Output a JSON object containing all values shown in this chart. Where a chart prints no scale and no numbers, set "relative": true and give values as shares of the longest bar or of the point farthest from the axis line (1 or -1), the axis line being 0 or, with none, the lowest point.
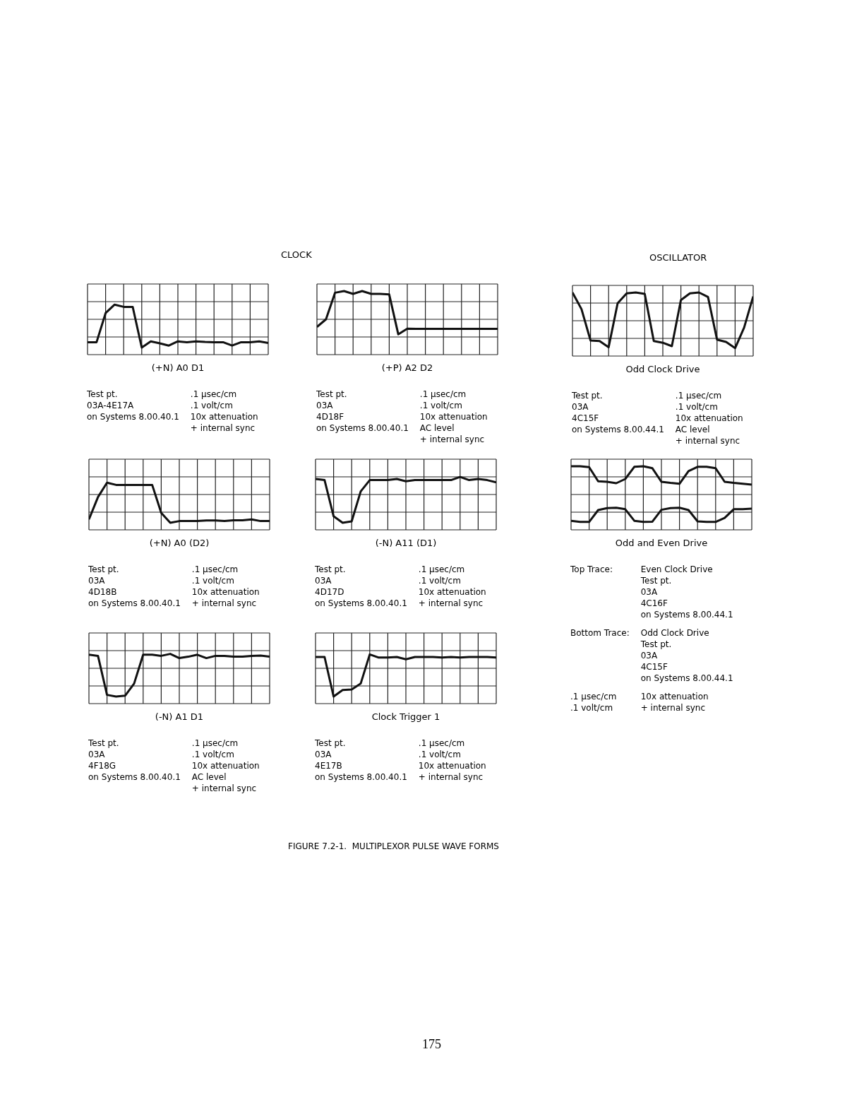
{
  "chart_data": [
    {
      "type": "line",
      "title": "(+N) A0 D1",
      "relative": true,
      "grid": true,
      "categories": [
        null,
        null,
        null,
        null,
        null,
        null,
        null,
        null,
        null,
        null,
        null,
        null,
        null,
        null,
        null,
        null,
        null,
        null,
        null,
        null,
        null
      ],
      "series": [
        {
          "color": "#111111",
          "values": [
            -0.81,
            -0.81,
            0.22,
            0.52,
            0.44,
            0.44,
            -1,
            -0.78,
            -0.85,
            -0.93,
            -0.78,
            -0.81,
            -0.78,
            -0.8,
            -0.81,
            -0.81,
            -0.93,
            -0.81,
            -0.81,
            -0.78,
            -0.84
          ]
        }
      ],
      "annotations": [
        "Test pt.\n03A-4E17A\non Systems 8.00.40.1",
        ".1 µsec/cm\n.1 volt/cm\n10x attenuation\n+ internal sync"
      ]
    },
    {
      "type": "line",
      "title": "(+P) A2 D2",
      "relative": true,
      "grid": true,
      "categories": [
        null,
        null,
        null,
        null,
        null,
        null,
        null,
        null,
        null,
        null,
        null,
        null,
        null,
        null,
        null,
        null,
        null,
        null,
        null,
        null,
        null
      ],
      "series": [
        {
          "color": "#111111",
          "values": [
            -0.27,
            0,
            0.94,
            1,
            0.9,
            1,
            0.9,
            0.9,
            0.88,
            -0.53,
            -0.33,
            -0.34,
            -0.34,
            -0.34,
            -0.34,
            -0.34,
            -0.34,
            -0.34,
            -0.34,
            -0.34,
            -0.34
          ]
        }
      ],
      "annotations": [
        "Test pt.\n03A\n4D18F\non Systems 8.00.40.1",
        ".1 µsec/cm\n.1 volt/cm\n10x attenuation\nAC level\n+ internal sync"
      ]
    },
    {
      "type": "line",
      "title": "Odd Clock Drive",
      "relative": true,
      "grid": true,
      "categories": [
        null,
        null,
        null,
        null,
        null,
        null,
        null,
        null,
        null,
        null,
        null,
        null,
        null,
        null,
        null,
        null,
        null,
        null,
        null,
        null,
        null
      ],
      "series": [
        {
          "color": "#111111",
          "values": [
            1,
            0.41,
            -0.7,
            -0.72,
            -0.94,
            0.62,
            0.97,
            1,
            0.95,
            -0.72,
            -0.78,
            -0.9,
            0.73,
            0.97,
            1,
            0.84,
            -0.67,
            -0.75,
            -0.97,
            -0.24,
            0.86
          ]
        }
      ],
      "annotations": [
        "Test pt.\n03A\n4C15F\non Systems 8.00.44.1",
        ".1 µsec/cm\n.1 volt/cm\n10x attenuation\nAC level\n+ internal sync"
      ]
    },
    {
      "type": "line",
      "title": "(+N) A0 (D2)",
      "relative": true,
      "grid": true,
      "categories": [
        null,
        null,
        null,
        null,
        null,
        null,
        null,
        null,
        null,
        null,
        null,
        null,
        null,
        null,
        null,
        null,
        null,
        null,
        null,
        null,
        null
      ],
      "series": [
        {
          "color": "#111111",
          "values": [
            -0.88,
            -0.09,
            0.42,
            0.34,
            0.34,
            0.34,
            0.34,
            0.34,
            -0.65,
            -1,
            -0.94,
            -0.94,
            -0.94,
            -0.92,
            -0.92,
            -0.94,
            -0.91,
            -0.91,
            -0.88,
            -0.94,
            -0.94
          ]
        }
      ],
      "annotations": [
        "Test pt.\n03A\n4D18B\non Systems 8.00.40.1",
        ".1 µsec/cm\n.1 volt/cm\n10x attenuation\n+ internal sync"
      ]
    },
    {
      "type": "line",
      "title": "(-N) A11 (D1)",
      "relative": true,
      "grid": true,
      "categories": [
        null,
        null,
        null,
        null,
        null,
        null,
        null,
        null,
        null,
        null,
        null,
        null,
        null,
        null,
        null,
        null,
        null,
        null,
        null,
        null,
        null
      ],
      "series": [
        {
          "color": "#111111",
          "values": [
            0.55,
            0.51,
            -0.77,
            -1,
            -0.95,
            0.11,
            0.51,
            0.51,
            0.51,
            0.55,
            0.47,
            0.51,
            0.51,
            0.51,
            0.51,
            0.51,
            0.62,
            0.51,
            0.55,
            0.51,
            0.43
          ]
        }
      ],
      "annotations": [
        "Test pt.\n03A\n4D17D\non Systems 8.00.40.1",
        ".1 µsec/cm\n.1 volt/cm\n10x attenuation\n+ internal sync"
      ]
    },
    {
      "type": "line",
      "title": "Odd and Even Drive",
      "relative": true,
      "grid": true,
      "categories": [
        null,
        null,
        null,
        null,
        null,
        null,
        null,
        null,
        null,
        null,
        null,
        null,
        null,
        null,
        null,
        null,
        null,
        null,
        null,
        null,
        null
      ],
      "series": [
        {
          "color": "#111111",
          "values": [
            1,
            1,
            0.97,
            0.47,
            0.45,
            0.4,
            0.55,
            0.98,
            1,
            0.93,
            0.45,
            0.41,
            0.38,
            0.83,
            0.98,
            0.98,
            0.93,
            0.45,
            0.41,
            0.38,
            0.35
          ]
        },
        {
          "color": "#111111",
          "values": [
            -0.93,
            -0.97,
            -0.97,
            -0.55,
            -0.48,
            -0.47,
            -0.52,
            -0.93,
            -0.97,
            -0.96,
            -0.54,
            -0.48,
            -0.47,
            -0.55,
            -0.95,
            -0.97,
            -0.97,
            -0.83,
            -0.52,
            -0.52,
            -0.5
          ]
        }
      ],
      "annotations": [
        "Top Trace:",
        "Even Clock Drive\nTest pt.\n03A\n4C16F\non Systems 8.00.44.1",
        "Bottom Trace:",
        "Odd Clock Drive\nTest pt.\n03A\n4C15F\non Systems 8.00.44.1",
        ".1 µsec/cm\n.1 volt/cm",
        "10x attenuation\n+ internal sync"
      ]
    },
    {
      "type": "line",
      "title": "(-N) A1 D1",
      "relative": true,
      "grid": true,
      "categories": [
        null,
        null,
        null,
        null,
        null,
        null,
        null,
        null,
        null,
        null,
        null,
        null,
        null,
        null,
        null,
        null,
        null,
        null,
        null,
        null,
        null
      ],
      "series": [
        {
          "color": "#111111",
          "values": [
            0.48,
            0.44,
            -0.94,
            -1,
            -0.97,
            -0.54,
            0.48,
            0.48,
            0.44,
            0.51,
            0.36,
            0.41,
            0.48,
            0.36,
            0.44,
            0.44,
            0.41,
            0.41,
            0.44,
            0.45,
            0.41
          ]
        }
      ],
      "annotations": [
        "Test pt.\n03A\n4F18G\non Systems 8.00.40.1",
        ".1 µsec/cm\n.1 volt/cm\n10x attenuation\nAC level\n+ internal sync"
      ]
    },
    {
      "type": "line",
      "title": "Clock Trigger 1",
      "relative": true,
      "grid": true,
      "categories": [
        null,
        null,
        null,
        null,
        null,
        null,
        null,
        null,
        null,
        null,
        null,
        null,
        null,
        null,
        null,
        null,
        null,
        null,
        null,
        null,
        null
      ],
      "series": [
        {
          "color": "#111111",
          "values": [
            0.4,
            0.4,
            -1,
            -0.77,
            -0.75,
            -0.54,
            0.49,
            0.38,
            0.38,
            0.4,
            0.32,
            0.4,
            0.4,
            0.4,
            0.38,
            0.4,
            0.38,
            0.4,
            0.4,
            0.4,
            0.38
          ]
        }
      ],
      "annotations": [
        "Test pt.\n03A\n4E17B\non Systems 8.00.40.1",
        ".1 µsec/cm\n.1 volt/cm\n10x attenuation\n+ internal sync"
      ]
    },
    {
      "type": "other",
      "annotations": [
        "CLOCK",
        "OSCILLATOR",
        "FIGURE 7.2-1.  MULTIPLEXOR PULSE WAVE FORMS",
        "175"
      ]
    }
  ]
}
